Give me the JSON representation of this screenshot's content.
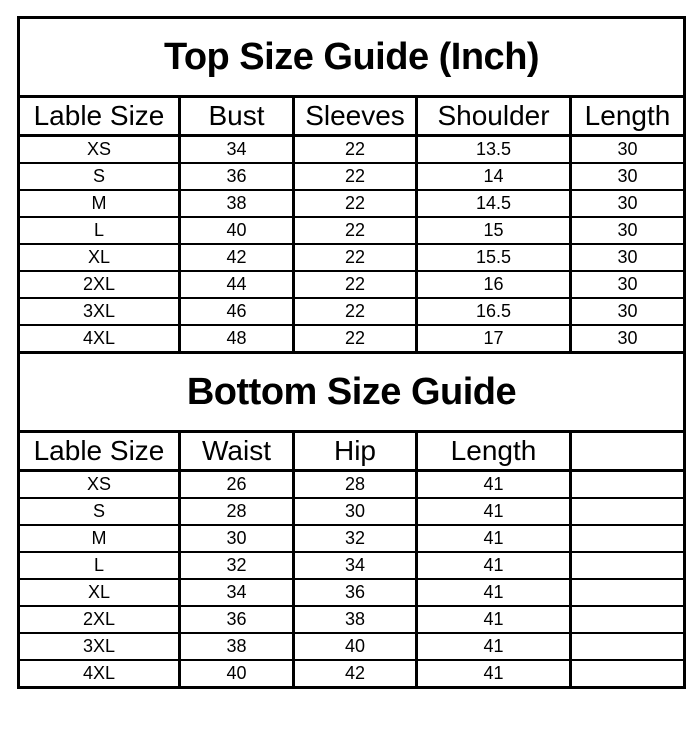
{
  "page": {
    "background_color": "#ffffff",
    "border_color": "#000000",
    "text_color": "#000000"
  },
  "chart_data": [
    {
      "type": "table",
      "title": "Top Size Guide (Inch)",
      "columns": [
        "Lable Size",
        "Bust",
        "Sleeves",
        "Shoulder",
        "Length"
      ],
      "rows": [
        [
          "XS",
          "34",
          "22",
          "13.5",
          "30"
        ],
        [
          "S",
          "36",
          "22",
          "14",
          "30"
        ],
        [
          "M",
          "38",
          "22",
          "14.5",
          "30"
        ],
        [
          "L",
          "40",
          "22",
          "15",
          "30"
        ],
        [
          "XL",
          "42",
          "22",
          "15.5",
          "30"
        ],
        [
          "2XL",
          "44",
          "22",
          "16",
          "30"
        ],
        [
          "3XL",
          "46",
          "22",
          "16.5",
          "30"
        ],
        [
          "4XL",
          "48",
          "22",
          "17",
          "30"
        ]
      ]
    },
    {
      "type": "table",
      "title": "Bottom Size Guide",
      "columns": [
        "Lable Size",
        "Waist",
        "Hip",
        "Length",
        ""
      ],
      "rows": [
        [
          "XS",
          "26",
          "28",
          "41",
          ""
        ],
        [
          "S",
          "28",
          "30",
          "41",
          ""
        ],
        [
          "M",
          "30",
          "32",
          "41",
          ""
        ],
        [
          "L",
          "32",
          "34",
          "41",
          ""
        ],
        [
          "XL",
          "34",
          "36",
          "41",
          ""
        ],
        [
          "2XL",
          "36",
          "38",
          "41",
          ""
        ],
        [
          "3XL",
          "38",
          "40",
          "41",
          ""
        ],
        [
          "4XL",
          "40",
          "42",
          "41",
          ""
        ]
      ]
    }
  ]
}
